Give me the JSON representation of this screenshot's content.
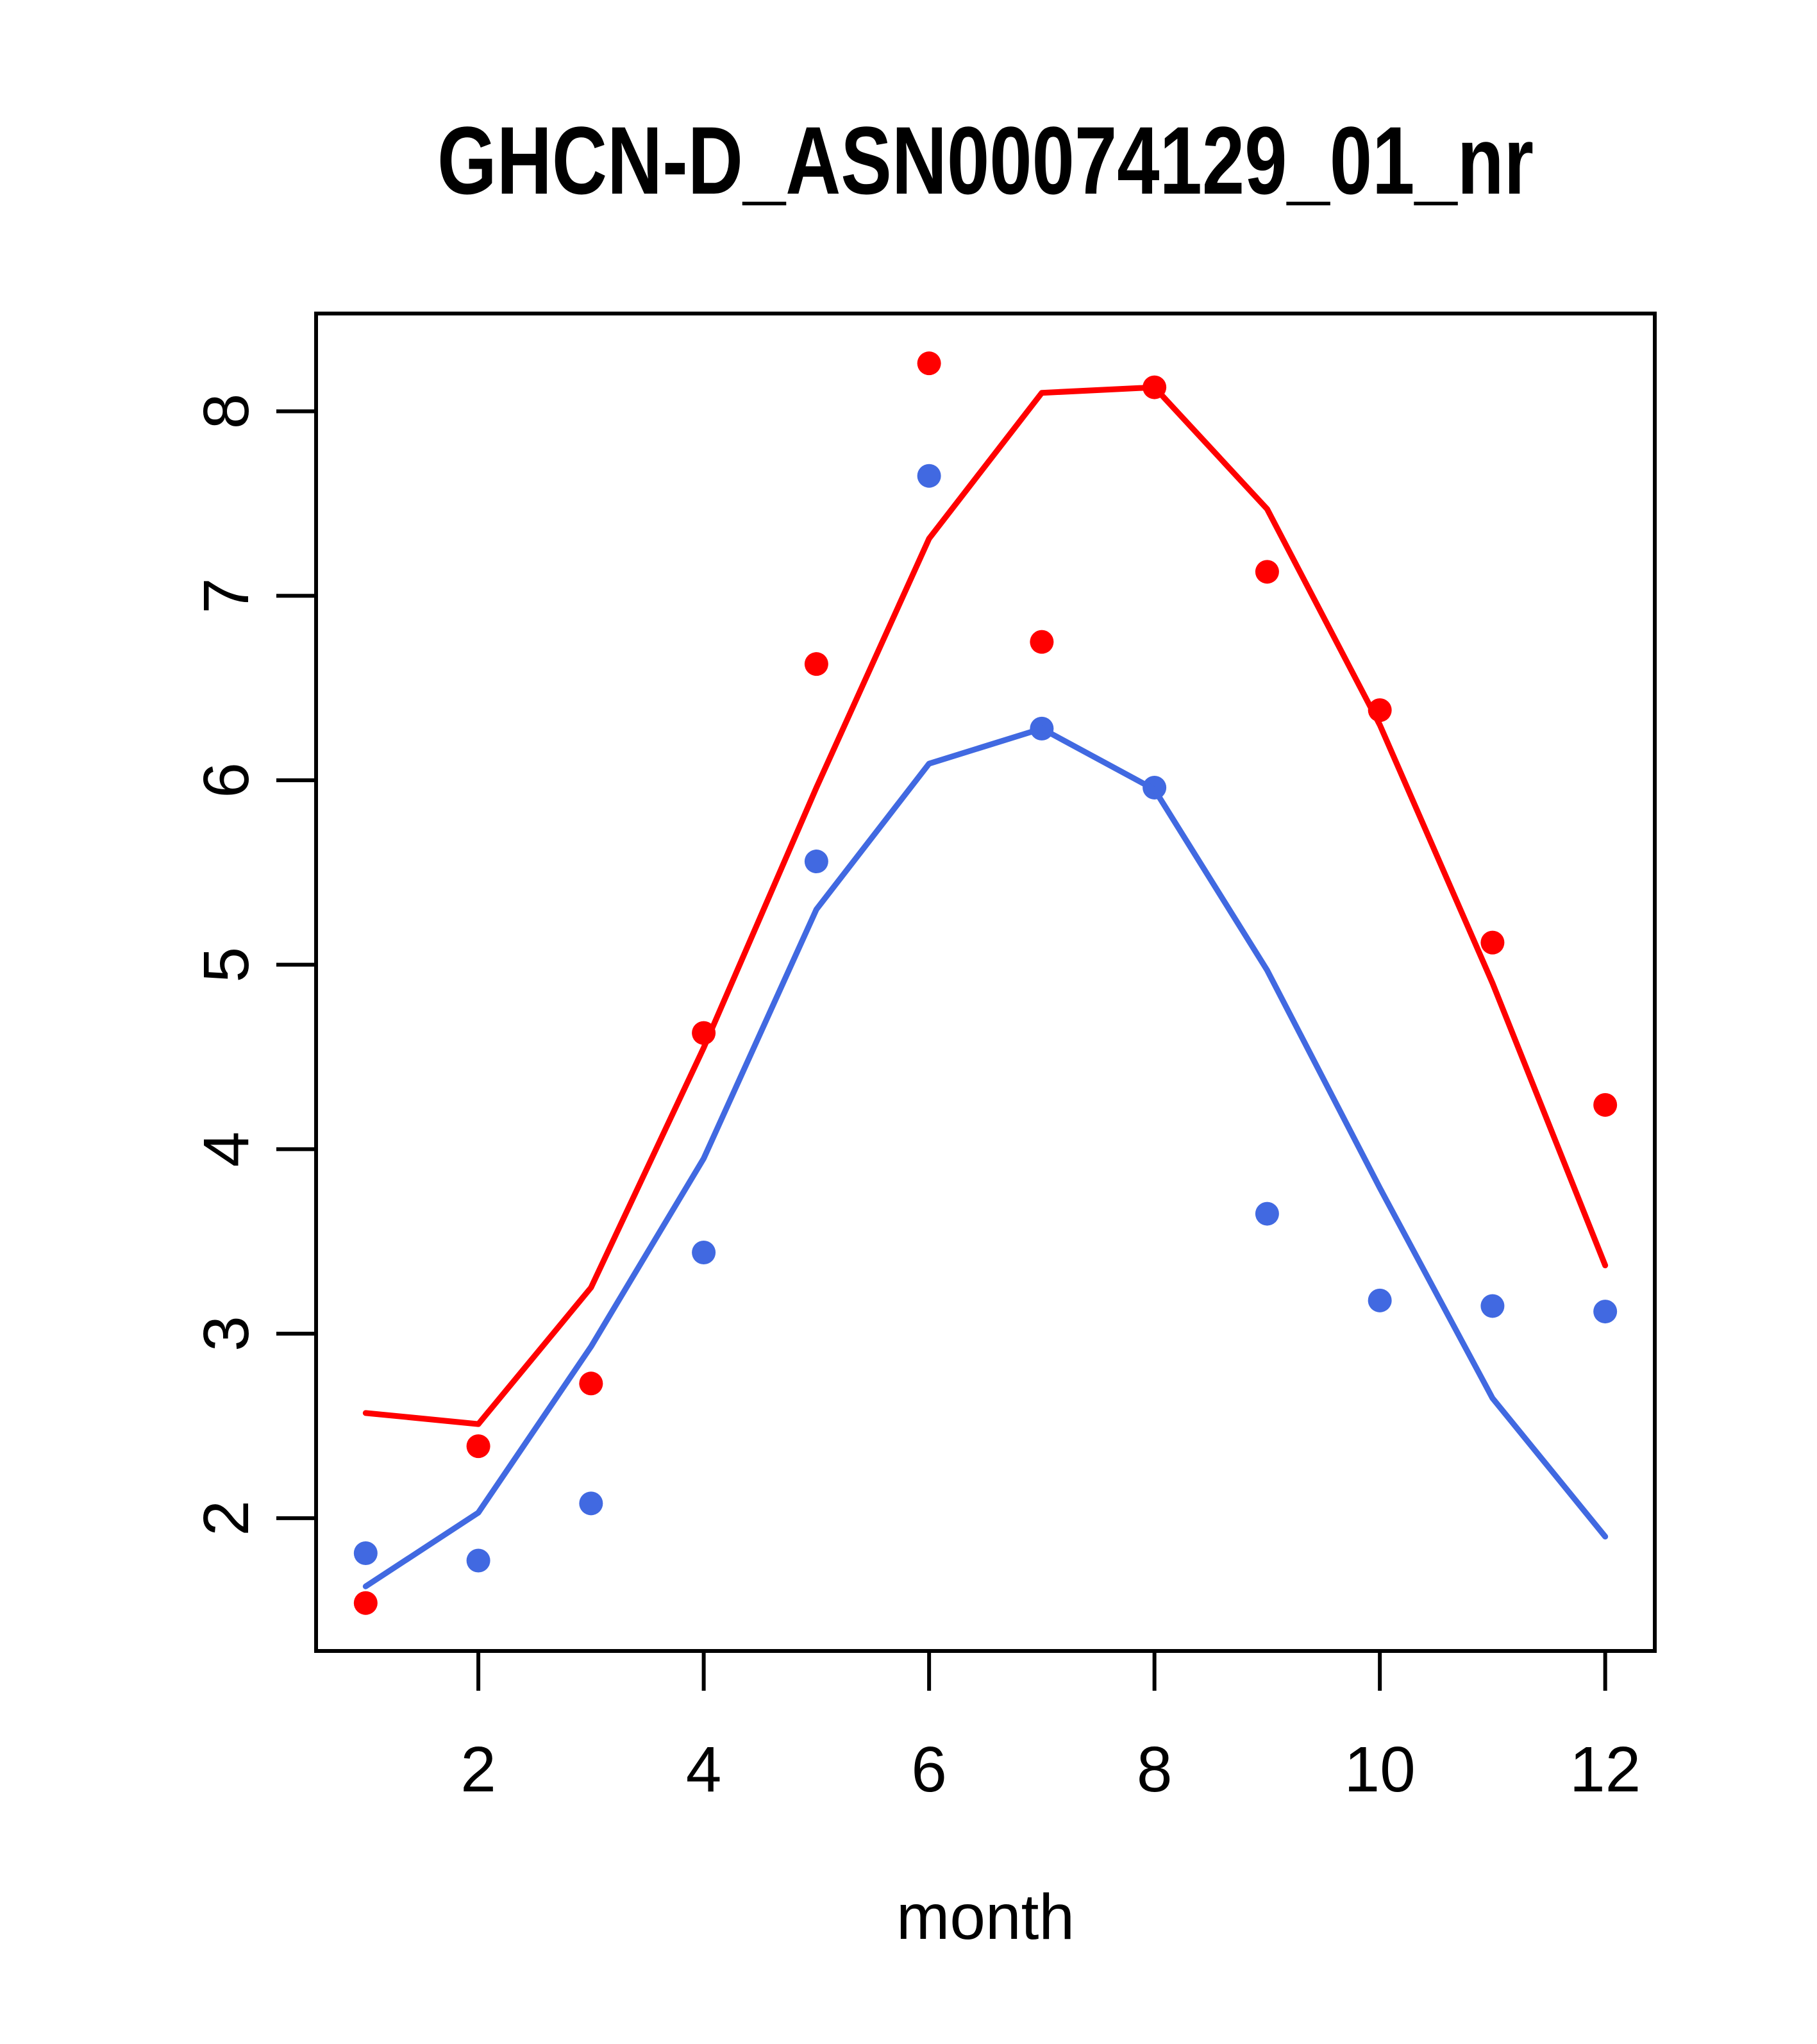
{
  "chart_data": {
    "type": "line",
    "title": "GHCN-D_ASN00074129_01_nr",
    "xlabel": "month",
    "ylabel": "",
    "x": [
      1,
      2,
      3,
      4,
      5,
      6,
      7,
      8,
      9,
      10,
      11,
      12
    ],
    "xlim": [
      0.56,
      12.44
    ],
    "ylim": [
      1.28,
      8.53
    ],
    "grid": false,
    "legend_position": "none",
    "xticks": {
      "values": [
        2,
        4,
        6,
        8,
        10,
        12
      ],
      "labels": [
        "2",
        "4",
        "6",
        "8",
        "10",
        "12"
      ]
    },
    "yticks": {
      "values": [
        2,
        3,
        4,
        5,
        6,
        7,
        8
      ],
      "labels": [
        "2",
        "3",
        "4",
        "5",
        "6",
        "7",
        "8"
      ]
    },
    "colors": {
      "red_series": "#ff0000",
      "blue_series": "#4169e1",
      "axis": "#000000"
    },
    "series": [
      {
        "name": "red points",
        "kind": "scatter",
        "color": "#ff0000",
        "values": [
          1.54,
          2.39,
          2.73,
          4.63,
          6.63,
          8.26,
          6.75,
          8.13,
          7.13,
          6.38,
          5.12,
          4.24
        ]
      },
      {
        "name": "red trend line",
        "kind": "line",
        "color": "#ff0000",
        "values": [
          2.57,
          2.51,
          3.25,
          4.55,
          5.96,
          7.31,
          8.1,
          8.13,
          7.47,
          6.3,
          4.9,
          3.37
        ]
      },
      {
        "name": "blue points",
        "kind": "scatter",
        "color": "#4169e1",
        "values": [
          1.81,
          1.77,
          2.08,
          3.44,
          5.56,
          7.65,
          6.28,
          5.96,
          3.65,
          3.18,
          3.15,
          3.12
        ]
      },
      {
        "name": "blue trend line",
        "kind": "line",
        "color": "#4169e1",
        "values": [
          1.63,
          2.03,
          2.93,
          3.95,
          5.3,
          6.09,
          6.28,
          5.95,
          4.97,
          3.79,
          2.65,
          1.9
        ]
      }
    ]
  }
}
